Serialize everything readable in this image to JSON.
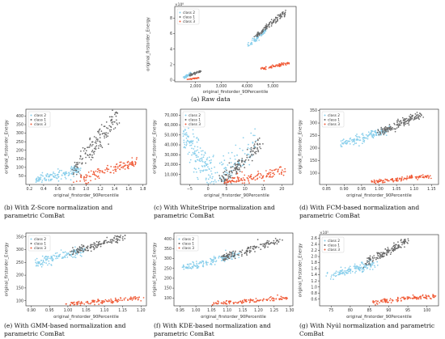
{
  "colors": {
    "class 2": "#87ceeb",
    "class 1": "#696969",
    "class 3": "#f05a36"
  },
  "chart_data": [
    {
      "id": "a",
      "type": "scatter",
      "caption": "(a) Raw data",
      "xlabel": "original_firstorder_90Percentile",
      "ylabel": "original_firstorder_Energy",
      "multiplier": "×10⁸",
      "xlim": [
        1200,
        5900
      ],
      "ylim": [
        -0.2,
        9.5
      ],
      "xticks": [
        2000,
        3000,
        4000,
        5000
      ],
      "xtick_labels": [
        "2,000",
        "3,000",
        "4,000",
        "5,000"
      ],
      "yticks": [
        0,
        2,
        4,
        6,
        8
      ],
      "ytick_labels": [
        "0",
        "2",
        "4",
        "6",
        "8"
      ],
      "legend": [
        "class 2",
        "class 1",
        "class 3"
      ],
      "series": [
        {
          "name": "class 2",
          "clusters": [
            {
              "x": [
                1550,
                1850
              ],
              "y": [
                0.35,
                0.85
              ],
              "n": 40,
              "spread": 0.1
            },
            {
              "x": [
                4050,
                4750
              ],
              "y": [
                4.5,
                6.5
              ],
              "n": 70,
              "spread": 0.15
            }
          ]
        },
        {
          "name": "class 1",
          "clusters": [
            {
              "x": [
                1800,
                2200
              ],
              "y": [
                0.6,
                1.2
              ],
              "n": 35,
              "spread": 0.08
            },
            {
              "x": [
                4300,
                5450
              ],
              "y": [
                5.5,
                8.8
              ],
              "n": 110,
              "spread": 0.15
            }
          ]
        },
        {
          "name": "class 3",
          "clusters": [
            {
              "x": [
                1650,
                2150
              ],
              "y": [
                0.1,
                0.3
              ],
              "n": 30,
              "spread": 0.04
            },
            {
              "x": [
                4500,
                5600
              ],
              "y": [
                1.4,
                2.2
              ],
              "n": 70,
              "spread": 0.08
            }
          ]
        }
      ]
    },
    {
      "id": "b",
      "type": "scatter",
      "caption": "(b) With Z-Score normalization and parametric ComBat",
      "xlabel": "original_firstorder_90Percentile",
      "ylabel": "original_firstorder_Energy",
      "multiplier": "",
      "xlim": [
        0.15,
        1.85
      ],
      "ylim": [
        0,
        440
      ],
      "xticks": [
        0.2,
        0.4,
        0.6,
        0.8,
        1.0,
        1.2,
        1.4,
        1.6,
        1.8
      ],
      "xtick_labels": [
        "0.2",
        "0.4",
        "0.6",
        "0.8",
        "1.0",
        "1.2",
        "1.4",
        "1.6",
        "1.8"
      ],
      "yticks": [
        50,
        100,
        150,
        200,
        250,
        300,
        350,
        400
      ],
      "ytick_labels": [
        "50",
        "100",
        "150",
        "200",
        "250",
        "300",
        "350",
        "400"
      ],
      "legend": [
        "class 2",
        "class 1",
        "class 3"
      ],
      "series": [
        {
          "name": "class 2",
          "clusters": [
            {
              "x": [
                0.28,
                0.9
              ],
              "y": [
                25,
                85
              ],
              "n": 140,
              "spread": 14
            }
          ]
        },
        {
          "name": "class 1",
          "clusters": [
            {
              "x": [
                0.8,
                1.45
              ],
              "y": [
                80,
                390
              ],
              "n": 150,
              "spread": 30
            }
          ]
        },
        {
          "name": "class 3",
          "clusters": [
            {
              "x": [
                0.9,
                1.72
              ],
              "y": [
                35,
                130
              ],
              "n": 120,
              "spread": 14
            }
          ]
        }
      ]
    },
    {
      "id": "c",
      "type": "scatter",
      "caption": "(c) With WhiteStripe normalization and parametric ComBat",
      "xlabel": "original_firstorder_90Percentile",
      "ylabel": "original_firstorder_Energy",
      "multiplier": "",
      "xlim": [
        -7.5,
        23
      ],
      "ylim": [
        0,
        76000
      ],
      "xticks": [
        -5,
        0,
        5,
        10,
        15,
        20
      ],
      "xtick_labels": [
        "−5",
        "0",
        "5",
        "10",
        "15",
        "20"
      ],
      "yticks": [
        10000,
        20000,
        30000,
        40000,
        50000,
        60000,
        70000
      ],
      "ytick_labels": [
        "10,000",
        "20,000",
        "30,000",
        "40,000",
        "50,000",
        "60,000",
        "70,000"
      ],
      "legend": [
        "class 2",
        "class 1",
        "class 3"
      ],
      "series": [
        {
          "name": "class 2",
          "clusters": [
            {
              "x": [
                -6.5,
                2.5
              ],
              "y": [
                48000,
                3000
              ],
              "n": 170,
              "spread": 9000
            },
            {
              "x": [
                2.5,
                13
              ],
              "y": [
                3000,
                42000
              ],
              "n": 90,
              "spread": 8000
            }
          ]
        },
        {
          "name": "class 1",
          "clusters": [
            {
              "x": [
                3.5,
                14.5
              ],
              "y": [
                2000,
                42000
              ],
              "n": 140,
              "spread": 3500
            }
          ]
        },
        {
          "name": "class 3",
          "clusters": [
            {
              "x": [
                4,
                21
              ],
              "y": [
                1000,
                15000
              ],
              "n": 130,
              "spread": 2500
            }
          ]
        }
      ]
    },
    {
      "id": "d",
      "type": "scatter",
      "caption": "(d) With FCM-based normalization and parametric ComBat",
      "xlabel": "original_firstorder_90Percentile",
      "ylabel": "original_firstorder_Energy",
      "multiplier": "",
      "xlim": [
        0.83,
        1.17
      ],
      "ylim": [
        55,
        355
      ],
      "xticks": [
        0.85,
        0.9,
        0.95,
        1.0,
        1.05,
        1.1,
        1.15
      ],
      "xtick_labels": [
        "0.85",
        "0.90",
        "0.95",
        "1.00",
        "1.05",
        "1.10",
        "1.15"
      ],
      "yticks": [
        100,
        150,
        200,
        250,
        300,
        350
      ],
      "ytick_labels": [
        "100",
        "150",
        "200",
        "250",
        "300",
        "350"
      ],
      "legend": [
        "class 2",
        "class 1",
        "class 3"
      ],
      "series": [
        {
          "name": "class 2",
          "clusters": [
            {
              "x": [
                0.89,
                1.03
              ],
              "y": [
                215,
                275
              ],
              "n": 140,
              "spread": 9
            }
          ]
        },
        {
          "name": "class 1",
          "clusters": [
            {
              "x": [
                0.99,
                1.12
              ],
              "y": [
                255,
                335
              ],
              "n": 150,
              "spread": 9
            }
          ]
        },
        {
          "name": "class 3",
          "clusters": [
            {
              "x": [
                0.98,
                1.15
              ],
              "y": [
                65,
                90
              ],
              "n": 120,
              "spread": 4
            }
          ]
        }
      ]
    },
    {
      "id": "e",
      "type": "scatter",
      "caption": "(e) With GMM-based normalization and parametric ComBat",
      "xlabel": "original_firstorder_90Percentile",
      "ylabel": "original_firstorder_Energy",
      "multiplier": "",
      "xlim": [
        0.885,
        1.215
      ],
      "ylim": [
        80,
        365
      ],
      "xticks": [
        0.9,
        0.95,
        1.0,
        1.05,
        1.1,
        1.15,
        1.2
      ],
      "xtick_labels": [
        "0.90",
        "0.95",
        "1.00",
        "1.05",
        "1.10",
        "1.15",
        "1.20"
      ],
      "yticks": [
        100,
        150,
        200,
        250,
        300,
        350
      ],
      "ytick_labels": [
        "100",
        "150",
        "200",
        "250",
        "300",
        "350"
      ],
      "legend": [
        "class 2",
        "class 1",
        "class 3"
      ],
      "series": [
        {
          "name": "class 2",
          "clusters": [
            {
              "x": [
                0.91,
                1.05
              ],
              "y": [
                245,
                300
              ],
              "n": 140,
              "spread": 8
            }
          ]
        },
        {
          "name": "class 1",
          "clusters": [
            {
              "x": [
                1.01,
                1.16
              ],
              "y": [
                290,
                352
              ],
              "n": 140,
              "spread": 7
            }
          ]
        },
        {
          "name": "class 3",
          "clusters": [
            {
              "x": [
                1.0,
                1.2
              ],
              "y": [
                86,
                110
              ],
              "n": 120,
              "spread": 4
            }
          ]
        }
      ]
    },
    {
      "id": "f",
      "type": "scatter",
      "caption": "(f) With KDE-based normalization and parametric ComBat",
      "xlabel": "original_firstorder_90Percentile",
      "ylabel": "original_firstorder_Energy",
      "multiplier": "",
      "xlim": [
        0.93,
        1.31
      ],
      "ylim": [
        60,
        430
      ],
      "xticks": [
        0.95,
        1.0,
        1.05,
        1.1,
        1.15,
        1.2,
        1.25,
        1.3
      ],
      "xtick_labels": [
        "0.95",
        "1.00",
        "1.05",
        "1.10",
        "1.15",
        "1.20",
        "1.25",
        "1.30"
      ],
      "yticks": [
        100,
        150,
        200,
        250,
        300,
        350,
        400
      ],
      "ytick_labels": [
        "100",
        "150",
        "200",
        "250",
        "300",
        "350",
        "400"
      ],
      "legend": [
        "class 2",
        "class 1",
        "class 3"
      ],
      "series": [
        {
          "name": "class 2",
          "clusters": [
            {
              "x": [
                0.96,
                1.13
              ],
              "y": [
                250,
                320
              ],
              "n": 140,
              "spread": 10
            }
          ]
        },
        {
          "name": "class 1",
          "clusters": [
            {
              "x": [
                1.08,
                1.27
              ],
              "y": [
                300,
                395
              ],
              "n": 140,
              "spread": 10
            }
          ]
        },
        {
          "name": "class 3",
          "clusters": [
            {
              "x": [
                1.05,
                1.29
              ],
              "y": [
                70,
                100
              ],
              "n": 120,
              "spread": 5
            }
          ]
        }
      ]
    },
    {
      "id": "g",
      "type": "scatter",
      "caption": "(g) With Nyúl normalization and parametric ComBat",
      "xlabel": "original_firstorder_90Percentile",
      "ylabel": "original_firstorder_Energy",
      "multiplier": "×10⁵",
      "xlim": [
        72,
        103
      ],
      "ylim": [
        0.38,
        2.72
      ],
      "xticks": [
        75,
        80,
        85,
        90,
        95,
        100
      ],
      "xtick_labels": [
        "75",
        "80",
        "85",
        "90",
        "95",
        "100"
      ],
      "yticks": [
        0.6,
        0.8,
        1.0,
        1.2,
        1.4,
        1.6,
        1.8,
        2.0,
        2.2,
        2.4,
        2.6
      ],
      "ytick_labels": [
        "0.6",
        "0.8",
        "1.0",
        "1.2",
        "1.4",
        "1.6",
        "1.8",
        "2.0",
        "2.2",
        "2.4",
        "2.6"
      ],
      "legend": [
        "class 2",
        "class 1",
        "class 3"
      ],
      "series": [
        {
          "name": "class 2",
          "clusters": [
            {
              "x": [
                74,
                87
              ],
              "y": [
                1.35,
                1.8
              ],
              "n": 140,
              "spread": 0.07
            }
          ]
        },
        {
          "name": "class 1",
          "clusters": [
            {
              "x": [
                84,
                95
              ],
              "y": [
                1.8,
                2.5
              ],
              "n": 140,
              "spread": 0.07
            }
          ]
        },
        {
          "name": "class 3",
          "clusters": [
            {
              "x": [
                86,
                102
              ],
              "y": [
                0.5,
                0.7
              ],
              "n": 120,
              "spread": 0.035
            }
          ]
        }
      ]
    }
  ]
}
